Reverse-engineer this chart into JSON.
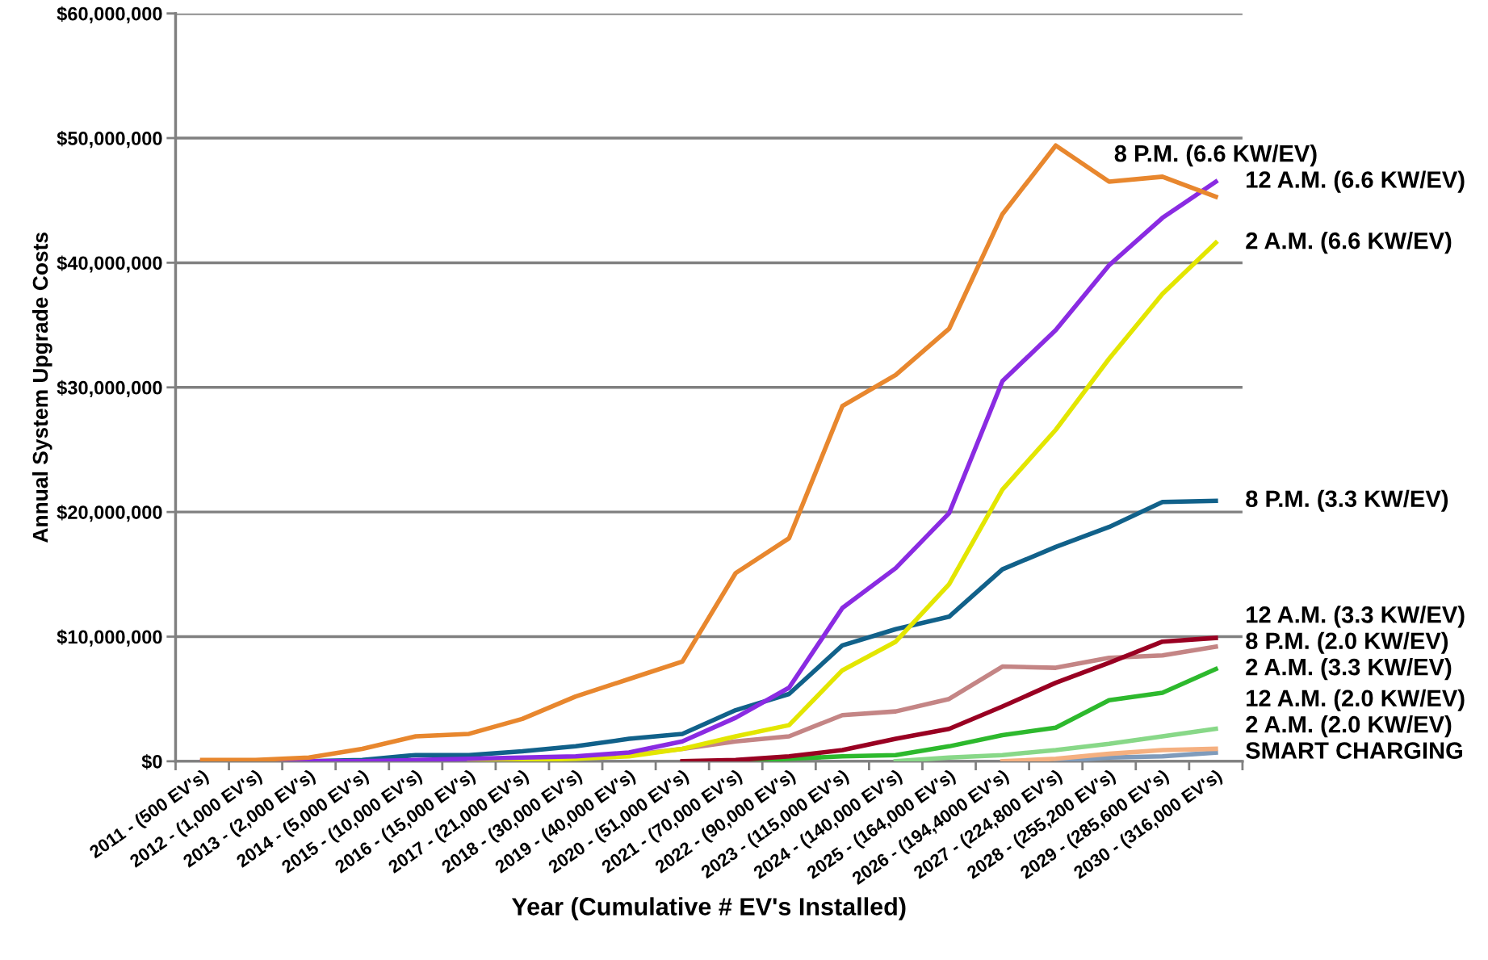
{
  "chart_data": {
    "type": "line",
    "xlabel": "Year (Cumulative # EV's Installed)",
    "ylabel": "Annual System Upgrade Costs",
    "categories": [
      "2011 - (500 EV's)",
      "2012 - (1,000 EV's)",
      "2013 - (2,000 EV's)",
      "2014 - (5,000 EV's)",
      "2015 - (10,000 EV's)",
      "2016 - (15,000 EV's)",
      "2017 - (21,000 EV's)",
      "2018 - (30,000 EV's)",
      "2019 - (40,000 EV's)",
      "2020 - (51,000 EV's)",
      "2021 - (70,000 EV's)",
      "2022 - (90,000 EV's)",
      "2023 - (115,000 EV's)",
      "2024 - (140,000 EV's)",
      "2025 - (164,000 EV's)",
      "2026 - (194,4000 EV's)",
      "2027 - (224,800 EV's)",
      "2028 - (255,200 EV's)",
      "2029 - (285,600 EV's)",
      "2030 - (316,000 EV's)"
    ],
    "series": [
      {
        "name": "8 P.M. (6.6 KW/EV)",
        "color": "#e8872e",
        "values": [
          100000,
          100000,
          300000,
          1000000,
          2000000,
          2200000,
          3400000,
          5200000,
          6600000,
          8000000,
          15100000,
          17900000,
          28500000,
          31000000,
          34700000,
          43900000,
          49400000,
          46500000,
          46900000,
          45300000
        ]
      },
      {
        "name": "12 A.M. (6.6 KW/EV)",
        "color": "#8a2be2",
        "values": [
          0,
          0,
          0,
          0,
          100000,
          200000,
          300000,
          400000,
          700000,
          1600000,
          3500000,
          5900000,
          12300000,
          15500000,
          19900000,
          30500000,
          34600000,
          39800000,
          43600000,
          46500000
        ]
      },
      {
        "name": "2 A.M. (6.6 KW/EV)",
        "color": "#e3e600",
        "values": [
          null,
          null,
          null,
          null,
          null,
          0,
          100000,
          200000,
          400000,
          1000000,
          2000000,
          2900000,
          7300000,
          9600000,
          14200000,
          21800000,
          26600000,
          32300000,
          37500000,
          41600000
        ]
      },
      {
        "name": "8 P.M. (3.3 KW/EV)",
        "color": "#11618a",
        "values": [
          null,
          null,
          0,
          100000,
          500000,
          500000,
          800000,
          1200000,
          1800000,
          2200000,
          4100000,
          5400000,
          9300000,
          10600000,
          11600000,
          15400000,
          17200000,
          18800000,
          20800000,
          20900000
        ]
      },
      {
        "name": "12 A.M. (3.3 KW/EV)",
        "color": "#990022",
        "values": [
          null,
          null,
          null,
          null,
          null,
          null,
          null,
          null,
          null,
          0,
          100000,
          400000,
          900000,
          1800000,
          2600000,
          4400000,
          6300000,
          7900000,
          9600000,
          9900000
        ]
      },
      {
        "name": "8 P.M. (2.0 KW/EV)",
        "color": "#c48585",
        "values": [
          null,
          null,
          null,
          null,
          null,
          null,
          0,
          300000,
          500000,
          1000000,
          1600000,
          2000000,
          3700000,
          4000000,
          5000000,
          7600000,
          7500000,
          8300000,
          8500000,
          9200000
        ]
      },
      {
        "name": "2 A.M. (3.3 KW/EV)",
        "color": "#2db92d",
        "values": [
          null,
          null,
          null,
          null,
          null,
          null,
          null,
          null,
          null,
          null,
          0,
          200000,
          400000,
          500000,
          1200000,
          2100000,
          2700000,
          4900000,
          5500000,
          7400000
        ]
      },
      {
        "name": "12 A.M. (2.0 KW/EV)",
        "color": "#88d888",
        "values": [
          null,
          null,
          null,
          null,
          null,
          null,
          null,
          null,
          null,
          null,
          null,
          null,
          null,
          0,
          300000,
          500000,
          900000,
          1400000,
          2000000,
          2600000
        ]
      },
      {
        "name": "2 A.M. (2.0 KW/EV)",
        "color": "#f5b080",
        "values": [
          null,
          null,
          null,
          null,
          null,
          null,
          null,
          null,
          null,
          null,
          null,
          null,
          null,
          null,
          null,
          0,
          200000,
          600000,
          900000,
          1000000
        ]
      },
      {
        "name": "SMART CHARGING",
        "color": "#7f9bbb",
        "values": [
          null,
          null,
          null,
          null,
          null,
          null,
          null,
          null,
          null,
          null,
          null,
          null,
          null,
          null,
          null,
          null,
          0,
          300000,
          400000,
          700000
        ]
      }
    ],
    "ylim": [
      0,
      60000000
    ],
    "yticks": [
      {
        "value": 0,
        "label": "$0"
      },
      {
        "value": 10000000,
        "label": "$10,000,000"
      },
      {
        "value": 20000000,
        "label": "$20,000,000"
      },
      {
        "value": 30000000,
        "label": "$30,000,000"
      },
      {
        "value": 40000000,
        "label": "$40,000,000"
      },
      {
        "value": 50000000,
        "label": "$50,000,000"
      },
      {
        "value": 60000000,
        "label": "$60,000,000"
      }
    ],
    "grid": "y",
    "legend": false,
    "marker": "none",
    "line_style": "solid"
  }
}
